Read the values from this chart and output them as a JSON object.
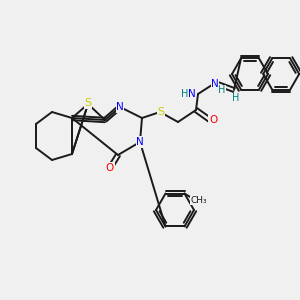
{
  "background_color": "#f0f0f0",
  "atom_colors": {
    "S": "#cccc00",
    "N": "#0000ff",
    "O": "#ff0000",
    "H": "#008080",
    "C": "#1a1a1a"
  },
  "bond_lw": 1.4,
  "dbl_off": 2.3
}
